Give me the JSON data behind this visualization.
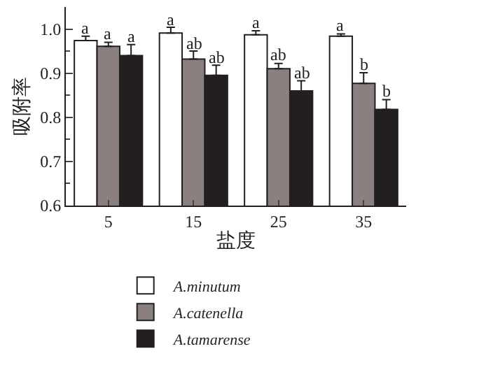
{
  "chart_data": {
    "type": "bar",
    "xlabel": "盐度",
    "ylabel": "吸附率",
    "categories": [
      "5",
      "15",
      "25",
      "35"
    ],
    "series": [
      {
        "name": "A.minutum",
        "color": "#ffffff",
        "values": [
          0.974,
          0.991,
          0.987,
          0.984
        ],
        "errors": [
          [
            0.974,
            0.984
          ],
          [
            0.991,
            1.004
          ],
          [
            0.987,
            0.996
          ],
          [
            0.984,
            0.989
          ]
        ],
        "value_labels": [
          "a",
          "a",
          "a",
          "a"
        ]
      },
      {
        "name": "A.catenella",
        "color": "#8a8080",
        "values": [
          0.961,
          0.932,
          0.91,
          0.877
        ],
        "errors": [
          [
            0.961,
            0.97
          ],
          [
            0.932,
            0.95
          ],
          [
            0.91,
            0.922
          ],
          [
            0.877,
            0.901
          ]
        ],
        "value_labels": [
          "a",
          "ab",
          "ab",
          "b"
        ]
      },
      {
        "name": "A.tamarense",
        "color": "#231f20",
        "values": [
          0.94,
          0.895,
          0.86,
          0.818
        ],
        "errors": [
          [
            0.94,
            0.965
          ],
          [
            0.895,
            0.918
          ],
          [
            0.86,
            0.883
          ],
          [
            0.818,
            0.84
          ]
        ],
        "value_labels": [
          "a",
          "ab",
          "ab",
          "b"
        ]
      }
    ],
    "ylim": [
      0.6,
      1.05
    ],
    "yticks": [
      {
        "value": 0.6,
        "label": "0.6"
      },
      {
        "value": 0.7,
        "label": "0.7"
      },
      {
        "value": 0.8,
        "label": "0.8"
      },
      {
        "value": 0.9,
        "label": "0.9"
      },
      {
        "value": 1.0,
        "label": "1.0"
      }
    ],
    "legend": "bottom"
  }
}
